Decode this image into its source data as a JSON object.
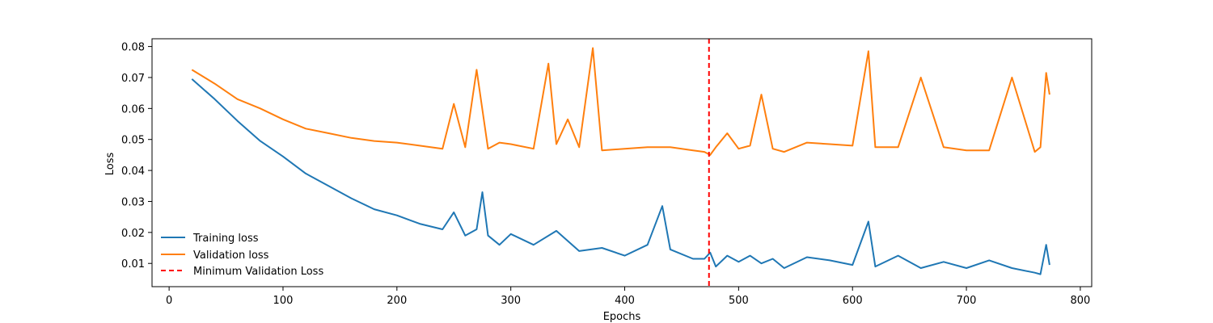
{
  "chart_data": {
    "type": "line",
    "title": "",
    "xlabel": "Epochs",
    "ylabel": "Loss",
    "xlim": [
      -15,
      810
    ],
    "ylim": [
      0.0025,
      0.0825
    ],
    "x_ticks": [
      0,
      100,
      200,
      300,
      400,
      500,
      600,
      700,
      800
    ],
    "y_ticks": [
      0.01,
      0.02,
      0.03,
      0.04,
      0.05,
      0.06,
      0.07,
      0.08
    ],
    "legend_position": "lower-left",
    "grid": false,
    "series": [
      {
        "name": "Training loss",
        "color": "#1f77b4",
        "x": [
          20,
          40,
          60,
          80,
          100,
          120,
          140,
          160,
          180,
          200,
          220,
          240,
          250,
          260,
          270,
          275,
          280,
          290,
          300,
          320,
          340,
          360,
          380,
          400,
          420,
          433,
          440,
          460,
          470,
          475,
          480,
          490,
          500,
          510,
          520,
          530,
          540,
          560,
          580,
          600,
          614,
          620,
          640,
          660,
          680,
          700,
          720,
          740,
          760,
          765,
          770,
          773
        ],
        "y": [
          0.0695,
          0.063,
          0.056,
          0.0495,
          0.0445,
          0.039,
          0.035,
          0.031,
          0.0275,
          0.0255,
          0.0228,
          0.021,
          0.0265,
          0.019,
          0.021,
          0.033,
          0.019,
          0.016,
          0.0195,
          0.016,
          0.0205,
          0.014,
          0.015,
          0.0125,
          0.016,
          0.0285,
          0.0145,
          0.0115,
          0.0115,
          0.0135,
          0.009,
          0.0125,
          0.0105,
          0.0125,
          0.01,
          0.0115,
          0.0085,
          0.012,
          0.011,
          0.0095,
          0.0235,
          0.009,
          0.0125,
          0.0085,
          0.0105,
          0.0085,
          0.011,
          0.0085,
          0.007,
          0.0065,
          0.016,
          0.0095
        ]
      },
      {
        "name": "Validation loss",
        "color": "#ff7f0e",
        "x": [
          20,
          40,
          60,
          80,
          100,
          120,
          140,
          160,
          180,
          200,
          220,
          240,
          250,
          260,
          270,
          280,
          290,
          300,
          320,
          333,
          340,
          350,
          360,
          372,
          380,
          400,
          420,
          440,
          460,
          470,
          475,
          480,
          490,
          500,
          510,
          520,
          530,
          540,
          560,
          580,
          600,
          614,
          620,
          640,
          660,
          680,
          700,
          720,
          740,
          760,
          765,
          770,
          773
        ],
        "y": [
          0.0725,
          0.068,
          0.063,
          0.06,
          0.0565,
          0.0535,
          0.052,
          0.0505,
          0.0495,
          0.049,
          0.048,
          0.047,
          0.0615,
          0.0475,
          0.0725,
          0.047,
          0.049,
          0.0485,
          0.047,
          0.0745,
          0.0485,
          0.0565,
          0.0475,
          0.0795,
          0.0465,
          0.047,
          0.0475,
          0.0475,
          0.0465,
          0.046,
          0.045,
          0.0475,
          0.052,
          0.047,
          0.048,
          0.0645,
          0.047,
          0.046,
          0.049,
          0.0485,
          0.048,
          0.0785,
          0.0475,
          0.0475,
          0.07,
          0.0475,
          0.0465,
          0.0465,
          0.07,
          0.046,
          0.0475,
          0.0715,
          0.0645
        ]
      }
    ],
    "reference_lines": [
      {
        "name": "Minimum Validation Loss",
        "orientation": "vertical",
        "x": 474,
        "color": "#ff0000",
        "style": "dashed"
      }
    ]
  }
}
